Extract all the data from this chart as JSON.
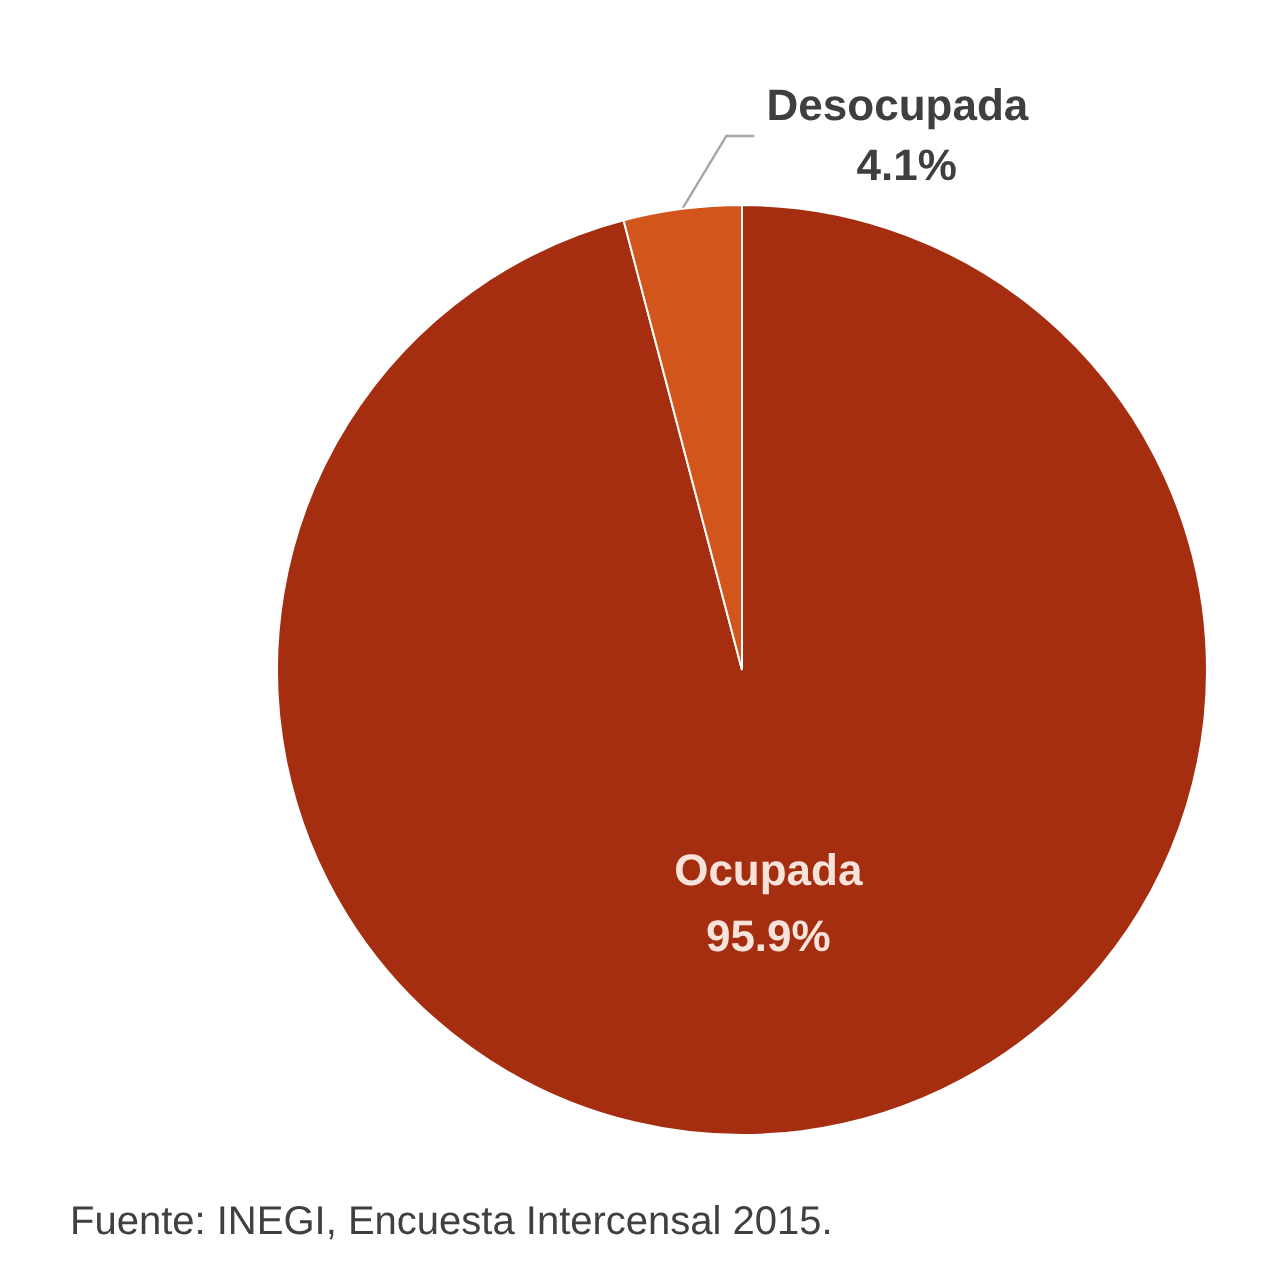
{
  "chart_data": {
    "type": "pie",
    "categories": [
      "Ocupada",
      "Desocupada"
    ],
    "values": [
      95.9,
      4.1
    ],
    "colors": [
      "#a52d10",
      "#d2561b"
    ],
    "value_labels": [
      "95.9%",
      "4.1%"
    ],
    "legend": false,
    "annotations": [
      "Fuente: INEGI, Encuesta Intercensal 2015."
    ]
  }
}
